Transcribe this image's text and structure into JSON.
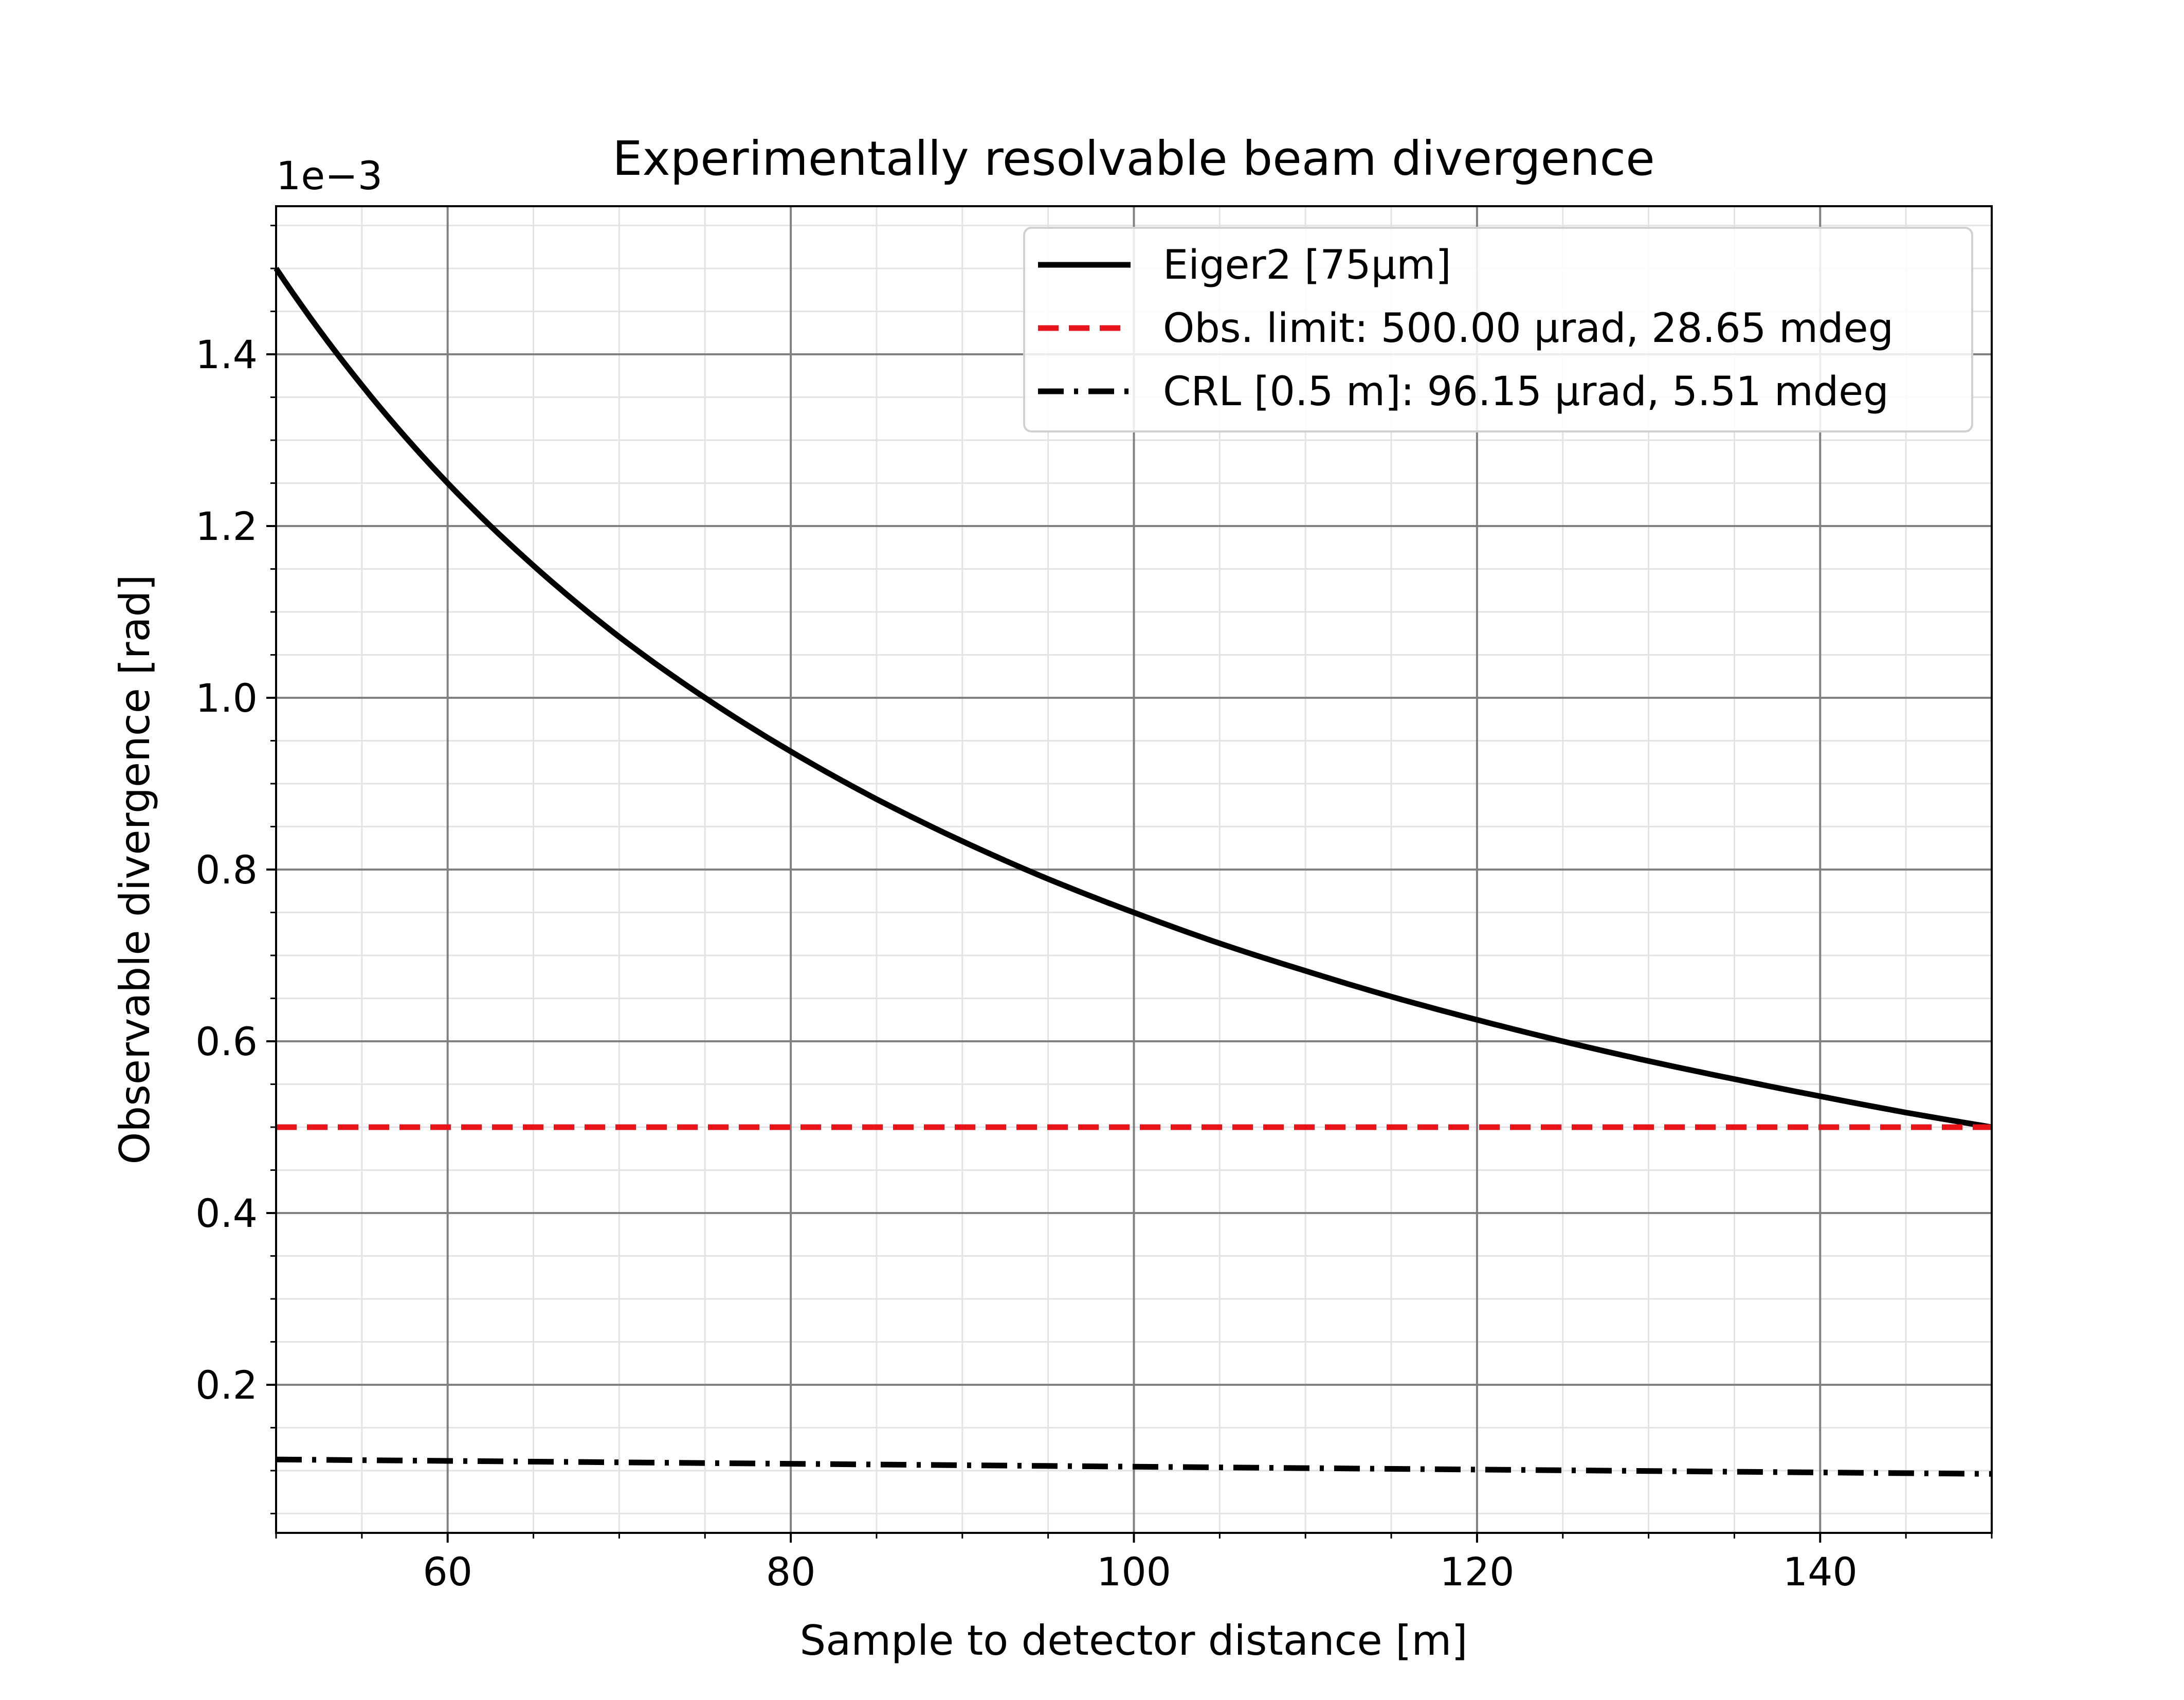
{
  "chart_data": {
    "type": "line",
    "title": "Experimentally resolvable beam divergence",
    "xlabel": "Sample to detector distance [m]",
    "ylabel": "Observable divergence [rad]",
    "y_offset_label": "1e−3",
    "xlim": [
      50,
      150
    ],
    "ylim": [
      2.75e-05,
      0.0015725
    ],
    "x_ticks": [
      60,
      80,
      100,
      120,
      140
    ],
    "x_tick_labels": [
      "60",
      "80",
      "100",
      "120",
      "140"
    ],
    "y_ticks": [
      0.0002,
      0.0004,
      0.0006,
      0.0008,
      0.001,
      0.0012,
      0.0014
    ],
    "y_tick_labels": [
      "0.2",
      "0.4",
      "0.6",
      "0.8",
      "1.0",
      "1.2",
      "1.4"
    ],
    "x_minor_step": 5,
    "y_minor_step": 5e-05,
    "grid": true,
    "legend_position": "top-right",
    "series": [
      {
        "name": "Eiger2 [75µm]",
        "style": "solid",
        "color": "#000000",
        "x": [
          50,
          55,
          60,
          65,
          70,
          75,
          80,
          85,
          90,
          95,
          100,
          105,
          110,
          115,
          120,
          125,
          130,
          135,
          140,
          145,
          150
        ],
        "y": [
          0.0015,
          0.001364,
          0.00125,
          0.001154,
          0.001071,
          0.001,
          0.0009375,
          0.000882,
          0.000833,
          0.000789,
          0.00075,
          0.000714,
          0.000682,
          0.000652,
          0.000625,
          0.0006,
          0.000577,
          0.000556,
          0.000536,
          0.000517,
          0.0005
        ]
      },
      {
        "name": "Obs. limit: 500.00 µrad, 28.65 mdeg",
        "style": "dashed",
        "color": "#e8141c",
        "x": [
          50,
          150
        ],
        "y": [
          0.0005,
          0.0005
        ]
      },
      {
        "name": "CRL [0.5 m]: 96.15 µrad, 5.51 mdeg",
        "style": "dashdot",
        "color": "#000000",
        "x": [
          50,
          150
        ],
        "y": [
          0.000113,
          9.62e-05
        ]
      }
    ]
  }
}
